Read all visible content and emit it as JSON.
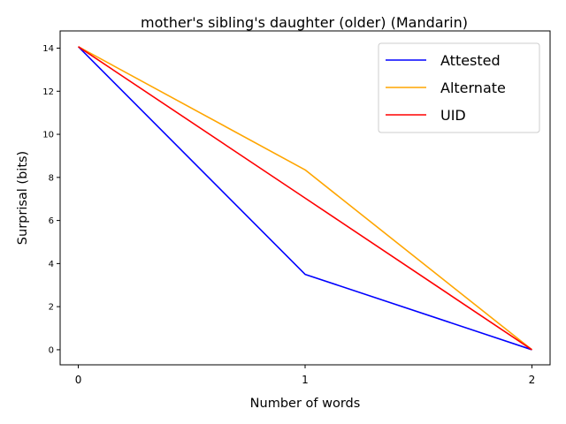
{
  "chart_data": {
    "type": "line",
    "title": "mother's sibling's daughter (older) (Mandarin)",
    "xlabel": "Number of words",
    "ylabel": "Surprisal (bits)",
    "x": [
      0,
      1,
      2
    ],
    "x_ticks": [
      "0",
      "1",
      "2"
    ],
    "y_ticks": [
      "0",
      "2",
      "4",
      "6",
      "8",
      "10",
      "12",
      "14"
    ],
    "xlim": [
      -0.08,
      2.08
    ],
    "ylim": [
      -0.7,
      14.8
    ],
    "grid": false,
    "legend_position": "top-right",
    "series": [
      {
        "name": "Attested",
        "color": "#0000ff",
        "values": [
          14.07,
          3.5,
          0.0
        ]
      },
      {
        "name": "Alternate",
        "color": "#ffa500",
        "values": [
          14.07,
          8.35,
          0.0
        ]
      },
      {
        "name": "UID",
        "color": "#ff0000",
        "values": [
          14.07,
          7.04,
          0.0
        ]
      }
    ]
  }
}
